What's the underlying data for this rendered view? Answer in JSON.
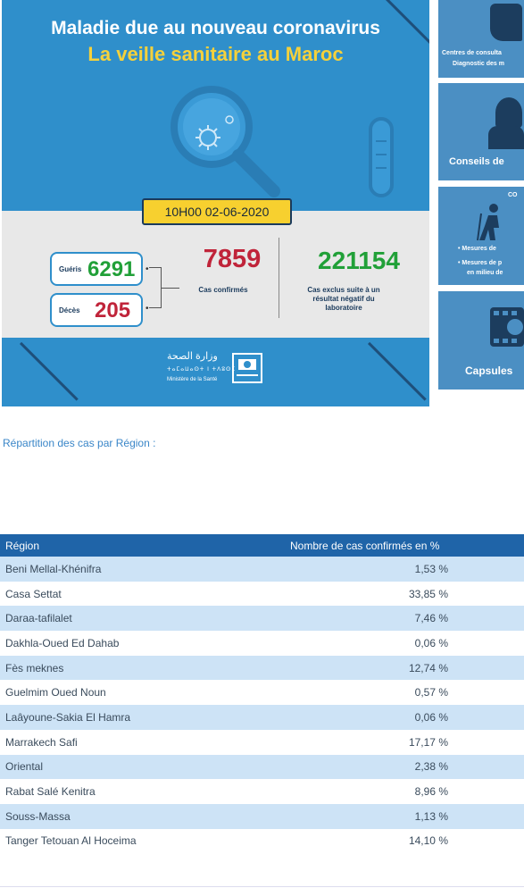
{
  "banner": {
    "title_line1": "Maladie due au nouveau coronavirus",
    "title_line2": "La veille sanitaire au Maroc",
    "date": "10H00  02-06-2020",
    "gueris_label": "Guéris",
    "gueris_value": "6291",
    "deces_label": "Décès",
    "deces_value": "205",
    "confirmed_value": "7859",
    "confirmed_label": "Cas confirmés",
    "excluded_value": "221154",
    "excluded_label": "Cas exclus suite à un résultat négatif du laboratoire",
    "ministry_ar": "وزارة الصحة",
    "ministry_tif": "ⵜⴰⵎⴰⵡⴰⵙⵜ ⵏ ⵜⴷⵓⵙⵉ",
    "ministry_fr": "Ministère de la Santé"
  },
  "cards": {
    "card1_line1": "Centres de consulta",
    "card1_line2": "Diagnostic des m",
    "card2_label": "Conseils de",
    "card3_title": "CO",
    "card3_line1": "• Mesures de",
    "card3_line2": "• Mesures de p",
    "card3_line3": "en milieu de",
    "card4_label": "Capsules"
  },
  "intro": "Répartition des cas par Région :",
  "table": {
    "header": {
      "region": "Région",
      "percent": "Nombre de cas confirmés en %"
    },
    "rows": [
      {
        "region": "Beni Mellal-Khénifra",
        "percent": "1,53 %"
      },
      {
        "region": "Casa Settat",
        "percent": "33,85 %"
      },
      {
        "region": "Daraa-tafilalet",
        "percent": "7,46 %"
      },
      {
        "region": "Dakhla-Oued Ed Dahab",
        "percent": "0,06 %"
      },
      {
        "region": "Fès meknes",
        "percent": "12,74 %"
      },
      {
        "region": "Guelmim Oued Noun",
        "percent": "0,57 %"
      },
      {
        "region": "Laâyoune-Sakia El Hamra",
        "percent": "0,06 %"
      },
      {
        "region": "Marrakech Safi",
        "percent": "17,17 %"
      },
      {
        "region": "Oriental",
        "percent": "2,38 %"
      },
      {
        "region": "Rabat Salé Kenitra",
        "percent": "8,96 %"
      },
      {
        "region": "Souss-Massa",
        "percent": "1,13 %"
      },
      {
        "region": "Tanger Tetouan Al Hoceima",
        "percent": "14,10 %"
      }
    ]
  },
  "colors": {
    "banner_blue": "#2f8fcb",
    "title_yellow": "#f5d13b",
    "green": "#21a038",
    "red": "#c0243a",
    "table_header": "#1f64a8",
    "row_alt": "#cde3f6",
    "link": "#3a86c8"
  },
  "icons": [
    "magnifier-virus-icon",
    "test-tube-icon",
    "ministry-logo-icon",
    "doctor-icon",
    "hiker-icon",
    "film-reel-icon"
  ]
}
